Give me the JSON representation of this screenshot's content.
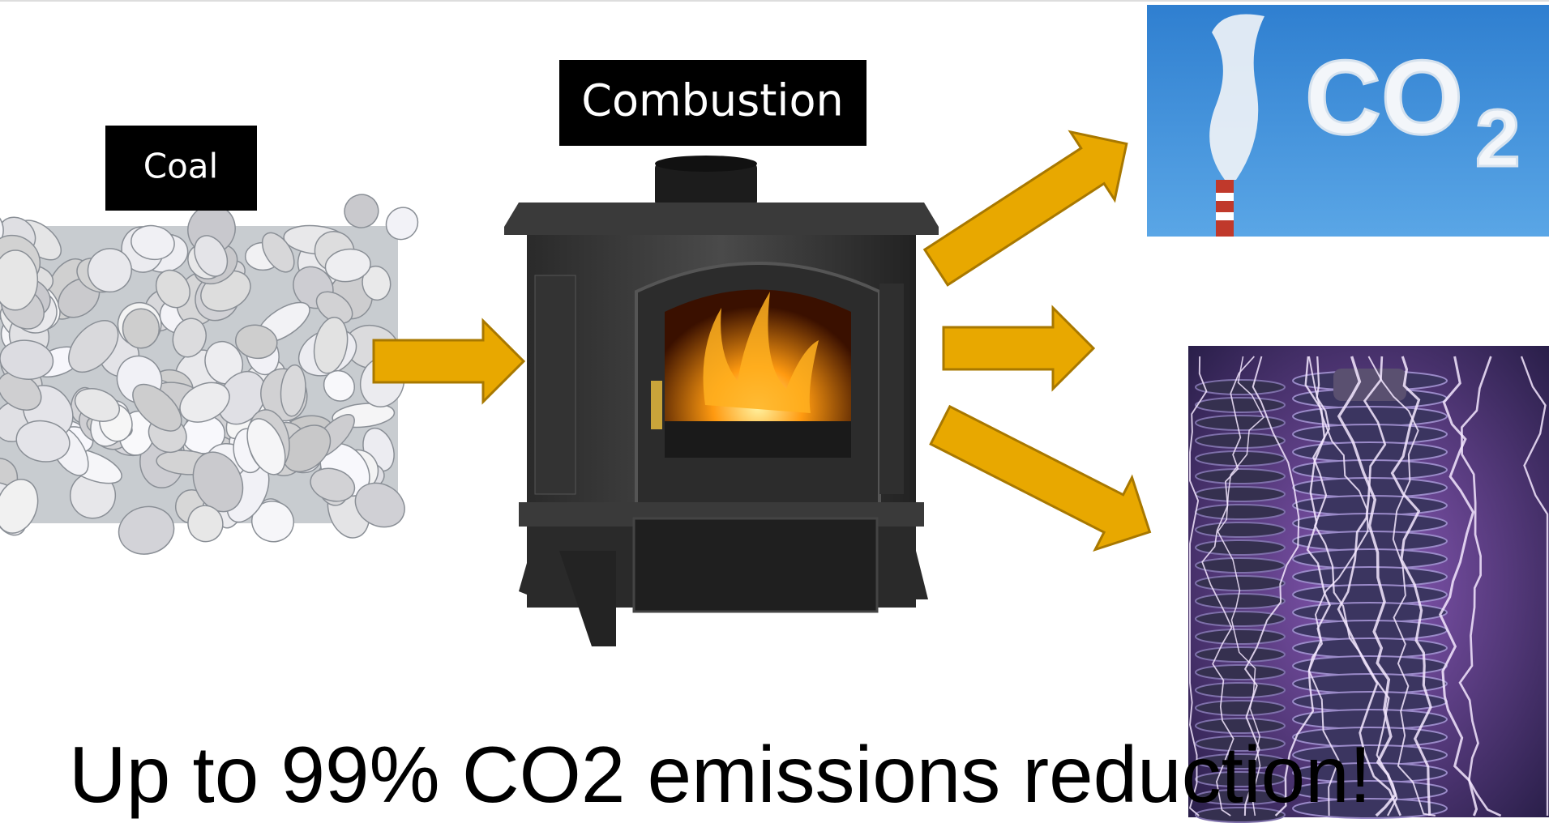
{
  "labels": {
    "coal": "Coal",
    "combustion": "Combustion"
  },
  "images": {
    "co2_sky": {
      "main": "CO",
      "subscript": "2"
    }
  },
  "caption": "Up to 99% CO2 emissions reduction!"
}
